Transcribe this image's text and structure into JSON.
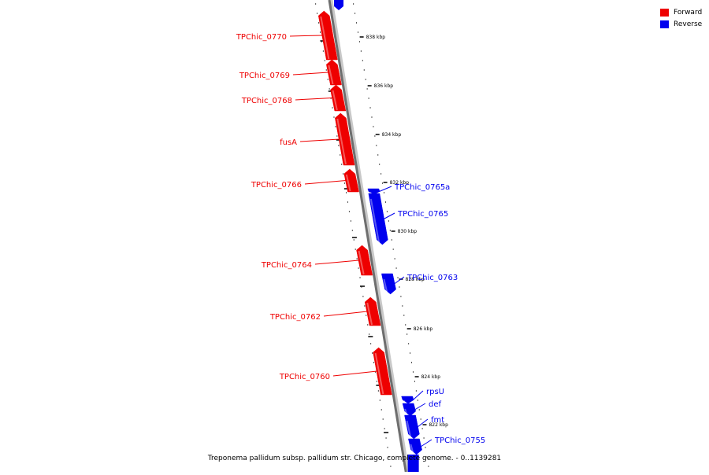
{
  "legend": {
    "forward": {
      "label": "Forward",
      "color": "#ee0000"
    },
    "reverse": {
      "label": "Reverse",
      "color": "#0000ee"
    }
  },
  "caption": "Treponema pallidum subsp. pallidum str. Chicago, complete genome. - 0..1139281",
  "ticks": [
    "838 kbp",
    "836 kbp",
    "834 kbp",
    "832 kbp",
    "830 kbp",
    "828 kbp",
    "826 kbp",
    "824 kbp",
    "822 kbp"
  ],
  "genes": [
    {
      "name": "TPChic_0770",
      "strand": "forward"
    },
    {
      "name": "TPChic_0769",
      "strand": "forward"
    },
    {
      "name": "TPChic_0768",
      "strand": "forward"
    },
    {
      "name": "fusA",
      "strand": "forward"
    },
    {
      "name": "TPChic_0766",
      "strand": "forward"
    },
    {
      "name": "TPChic_0765a",
      "strand": "reverse"
    },
    {
      "name": "TPChic_0765",
      "strand": "reverse"
    },
    {
      "name": "TPChic_0764",
      "strand": "forward"
    },
    {
      "name": "TPChic_0763",
      "strand": "reverse"
    },
    {
      "name": "TPChic_0762",
      "strand": "forward"
    },
    {
      "name": "TPChic_0760",
      "strand": "forward"
    },
    {
      "name": "rpsU",
      "strand": "reverse"
    },
    {
      "name": "def",
      "strand": "reverse"
    },
    {
      "name": "fmt",
      "strand": "reverse"
    },
    {
      "name": "TPChic_0755",
      "strand": "reverse"
    }
  ]
}
